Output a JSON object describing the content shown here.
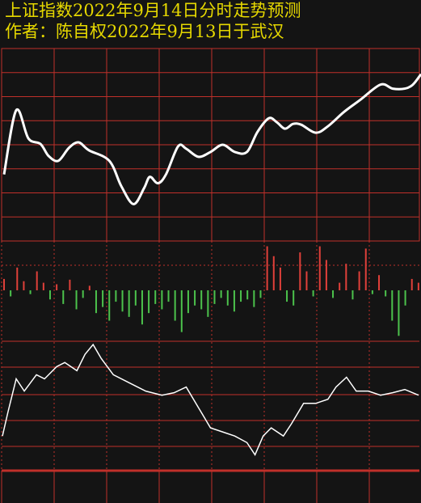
{
  "chart_data": [
    {
      "type": "line",
      "title": "上证指数2022年9月14日分时走势预测",
      "subtitle": "作者：陈自权2022年9月13日于武汉",
      "color": "#ffffff",
      "x": [
        5,
        20,
        35,
        50,
        60,
        72,
        85,
        97,
        110,
        135,
        150,
        165,
        178,
        185,
        195,
        205,
        220,
        230,
        245,
        260,
        275,
        290,
        305,
        318,
        332,
        342,
        352,
        362,
        372,
        390,
        405,
        425,
        445,
        470,
        485,
        500,
        510,
        520
      ],
      "values": [
        83,
        163,
        128,
        121,
        106,
        100,
        116,
        123,
        113,
        100,
        68,
        46,
        66,
        80,
        72,
        83,
        118,
        115,
        105,
        111,
        120,
        111,
        111,
        136,
        153,
        148,
        140,
        146,
        145,
        135,
        143,
        161,
        176,
        195,
        190,
        190,
        195,
        208
      ],
      "xlim": [
        0,
        520
      ],
      "ylim": [
        0,
        240
      ]
    },
    {
      "type": "bar",
      "up_color": "#e0403a",
      "down_color": "#4cc24c",
      "values": [
        15,
        -8,
        30,
        12,
        -5,
        25,
        10,
        -12,
        8,
        -18,
        14,
        -25,
        -10,
        6,
        -30,
        -22,
        -40,
        -15,
        -28,
        -35,
        -20,
        -45,
        -30,
        -18,
        -25,
        -15,
        -40,
        -55,
        -30,
        -20,
        -25,
        -35,
        -18,
        -10,
        -20,
        -28,
        -15,
        -12,
        -22,
        -10,
        58,
        45,
        30,
        -15,
        -20,
        50,
        25,
        -8,
        58,
        40,
        -10,
        10,
        35,
        -12,
        25,
        55,
        -5,
        20,
        -8,
        -40,
        -60,
        -20,
        15,
        10
      ],
      "ylim": [
        -65,
        65
      ]
    },
    {
      "type": "line",
      "color": "#ffffff",
      "x": [
        3,
        10,
        20,
        30,
        45,
        55,
        70,
        80,
        95,
        105,
        115,
        125,
        140,
        160,
        180,
        200,
        215,
        230,
        245,
        260,
        275,
        290,
        305,
        315,
        325,
        335,
        350,
        360,
        375,
        390,
        405,
        415,
        428,
        440,
        455,
        470,
        485,
        500,
        517
      ],
      "values": [
        82,
        112,
        152,
        137,
        157,
        152,
        167,
        172,
        162,
        182,
        194,
        177,
        157,
        147,
        137,
        132,
        135,
        142,
        117,
        92,
        87,
        82,
        74,
        59,
        82,
        92,
        82,
        97,
        122,
        122,
        127,
        142,
        154,
        137,
        137,
        132,
        135,
        139,
        132
      ],
      "xlim": [
        0,
        520
      ],
      "ylim": [
        0,
        200
      ]
    }
  ]
}
